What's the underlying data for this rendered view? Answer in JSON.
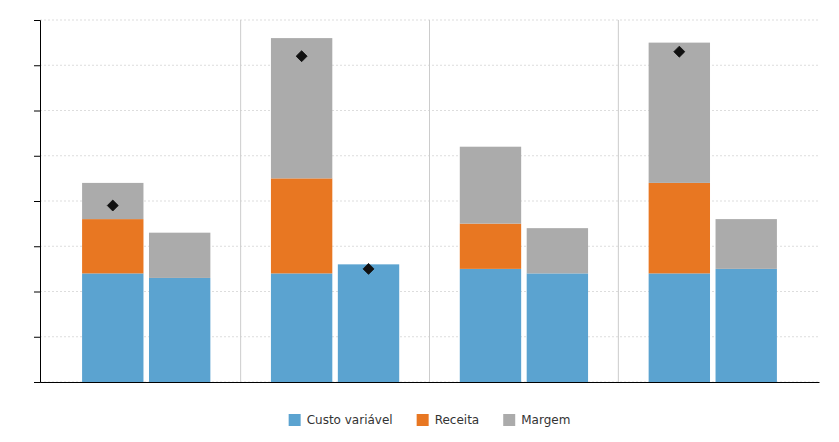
{
  "chart_data": {
    "type": "bar",
    "stacked": true,
    "categories": [
      null,
      null,
      null,
      null,
      null,
      null,
      null,
      null
    ],
    "series": [
      {
        "name": "Custo variável",
        "color": "#5BA3D0",
        "values": [
          1.2,
          1.15,
          1.2,
          1.3,
          1.25,
          1.2,
          1.2,
          1.25
        ]
      },
      {
        "name": "Receita",
        "color": "#E87722",
        "values": [
          0.6,
          0.0,
          1.05,
          0.0,
          0.5,
          0.0,
          1.0,
          0.0
        ]
      },
      {
        "name": "Margem",
        "color": "#ABABAB",
        "values": [
          0.4,
          0.5,
          1.55,
          0.0,
          0.85,
          0.5,
          1.55,
          0.55
        ]
      },
      {
        "type": "scatter",
        "marker": "diamond",
        "color": "#111111",
        "values": [
          1.95,
          null,
          3.6,
          1.25,
          null,
          null,
          3.65,
          null
        ]
      }
    ],
    "ylim": [
      0,
      4.0
    ],
    "yticks": [
      0,
      0.5,
      1,
      1.5,
      2,
      2.5,
      3,
      3.5,
      4
    ],
    "grid": true,
    "tick_labels": false,
    "legend": "bottom"
  }
}
